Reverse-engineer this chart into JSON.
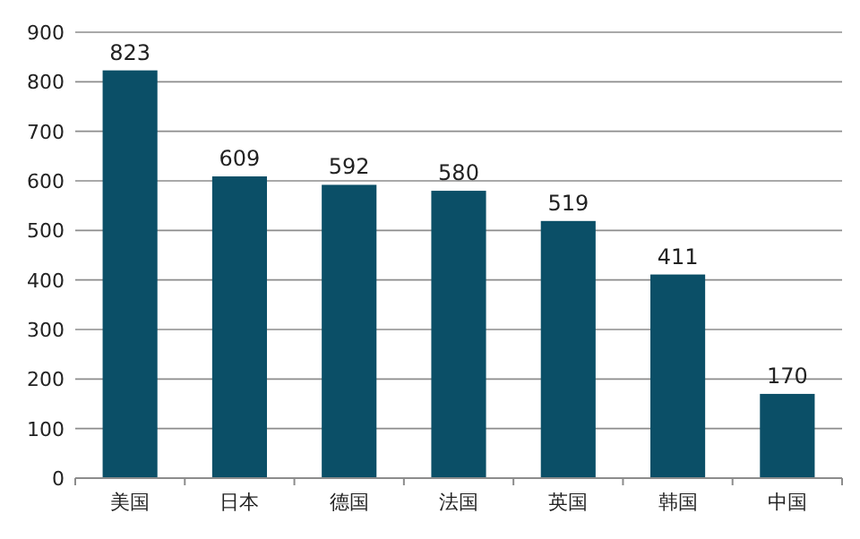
{
  "chart_data": {
    "type": "bar",
    "categories": [
      "美国",
      "日本",
      "德国",
      "法国",
      "英国",
      "韩国",
      "中国"
    ],
    "values": [
      823,
      609,
      592,
      580,
      519,
      411,
      170
    ],
    "color": "#0b4f67",
    "ylim": [
      0,
      900
    ],
    "yticks": [
      0,
      100,
      200,
      300,
      400,
      500,
      600,
      700,
      800,
      900
    ],
    "grid": "y",
    "data_labels": true
  }
}
